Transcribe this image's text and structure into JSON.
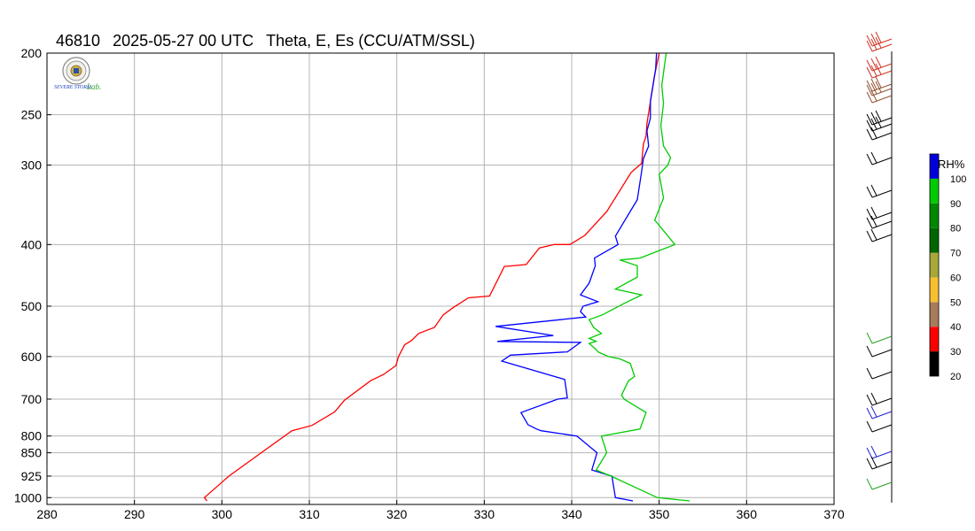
{
  "header": {
    "station": "46810",
    "datetime": "2025-05-27 00 UTC",
    "title": "Theta, E, Es (CCU/ATM/SSL)"
  },
  "logo": {
    "text_left": "SEVERE STORM",
    "text_right": "Lab."
  },
  "colorbar": {
    "label": "RH%",
    "ticks": [
      "20",
      "30",
      "40",
      "50",
      "60",
      "70",
      "80",
      "90",
      "100"
    ],
    "colors": [
      "#000000",
      "#ff0000",
      "#a87b5c",
      "#f8c030",
      "#a8a838",
      "#006600",
      "#008800",
      "#00cc00",
      "#0000dd"
    ]
  },
  "colors": {
    "theta": "#ff0000",
    "theta_e": "#0000ff",
    "theta_es": "#00cc00",
    "grid": "#b4b4b4"
  },
  "chart_data": {
    "type": "line",
    "xlabel": "",
    "ylabel": "",
    "xlim": [
      280,
      370
    ],
    "xticks": [
      280,
      290,
      300,
      310,
      320,
      330,
      340,
      350,
      360,
      370
    ],
    "ylim": [
      1025,
      200
    ],
    "yticks": [
      200,
      250,
      300,
      400,
      500,
      600,
      700,
      800,
      850,
      925,
      1000
    ],
    "grid": true,
    "series": [
      {
        "id": "theta",
        "color": "#ff0000",
        "points": [
          [
            298.3,
            1012
          ],
          [
            298.0,
            1000
          ],
          [
            300.8,
            925
          ],
          [
            304.5,
            850
          ],
          [
            308.0,
            785
          ],
          [
            310.3,
            770
          ],
          [
            312.9,
            733
          ],
          [
            314.0,
            703
          ],
          [
            317.0,
            655
          ],
          [
            318.5,
            640
          ],
          [
            319.9,
            620
          ],
          [
            320.2,
            600
          ],
          [
            320.9,
            575
          ],
          [
            321.7,
            566
          ],
          [
            322.5,
            552
          ],
          [
            324.3,
            540
          ],
          [
            325.3,
            516
          ],
          [
            326.5,
            502
          ],
          [
            328.2,
            485
          ],
          [
            330.6,
            482
          ],
          [
            332.3,
            433
          ],
          [
            334.8,
            430
          ],
          [
            336.3,
            405
          ],
          [
            338.0,
            400
          ],
          [
            339.8,
            400
          ],
          [
            341.5,
            387
          ],
          [
            344.0,
            355
          ],
          [
            346.8,
            308
          ],
          [
            348.0,
            298
          ],
          [
            348.2,
            278
          ],
          [
            348.5,
            270
          ],
          [
            348.6,
            258
          ],
          [
            349.5,
            216
          ],
          [
            350.0,
            200
          ]
        ]
      },
      {
        "id": "theta_e",
        "color": "#0000ff",
        "points": [
          [
            347.0,
            1012
          ],
          [
            345.0,
            1000
          ],
          [
            344.6,
            925
          ],
          [
            342.3,
            905
          ],
          [
            342.9,
            850
          ],
          [
            340.6,
            800
          ],
          [
            336.5,
            785
          ],
          [
            336.0,
            780
          ],
          [
            335.0,
            768
          ],
          [
            334.2,
            735
          ],
          [
            338.4,
            700
          ],
          [
            339.5,
            697
          ],
          [
            339.2,
            652
          ],
          [
            332.0,
            610
          ],
          [
            333.0,
            597
          ],
          [
            339.5,
            590
          ],
          [
            341.0,
            570
          ],
          [
            331.5,
            568
          ],
          [
            337.9,
            556
          ],
          [
            331.3,
            538
          ],
          [
            341.6,
            520
          ],
          [
            341.0,
            510
          ],
          [
            341.3,
            500
          ],
          [
            343.0,
            492
          ],
          [
            341.0,
            480
          ],
          [
            342.0,
            460
          ],
          [
            342.7,
            432
          ],
          [
            342.6,
            420
          ],
          [
            345.3,
            400
          ],
          [
            345.0,
            388
          ],
          [
            347.5,
            340
          ],
          [
            348.0,
            307
          ],
          [
            348.2,
            293
          ],
          [
            348.8,
            280
          ],
          [
            348.6,
            265
          ],
          [
            349.0,
            253
          ],
          [
            349.0,
            238
          ],
          [
            349.6,
            212
          ],
          [
            349.7,
            200
          ]
        ]
      },
      {
        "id": "theta_es",
        "color": "#00cc00",
        "points": [
          [
            353.5,
            1012
          ],
          [
            349.8,
            1000
          ],
          [
            344.5,
            925
          ],
          [
            342.8,
            905
          ],
          [
            344.0,
            850
          ],
          [
            343.4,
            800
          ],
          [
            347.8,
            780
          ],
          [
            348.5,
            735
          ],
          [
            346.0,
            700
          ],
          [
            345.7,
            690
          ],
          [
            346.5,
            655
          ],
          [
            347.2,
            645
          ],
          [
            346.7,
            615
          ],
          [
            345.5,
            605
          ],
          [
            344.2,
            600
          ],
          [
            343.0,
            590
          ],
          [
            342.8,
            585
          ],
          [
            342.0,
            572
          ],
          [
            342.8,
            568
          ],
          [
            342.0,
            562
          ],
          [
            343.4,
            552
          ],
          [
            342.5,
            540
          ],
          [
            342.0,
            525
          ],
          [
            343.5,
            516
          ],
          [
            346.0,
            495
          ],
          [
            348.0,
            480
          ],
          [
            345.0,
            470
          ],
          [
            347.5,
            450
          ],
          [
            347.5,
            432
          ],
          [
            345.5,
            423
          ],
          [
            347.8,
            420
          ],
          [
            351.8,
            400
          ],
          [
            349.5,
            366
          ],
          [
            350.5,
            338
          ],
          [
            350.0,
            310
          ],
          [
            351.0,
            300
          ],
          [
            351.3,
            292
          ],
          [
            350.5,
            280
          ],
          [
            350.2,
            260
          ],
          [
            350.5,
            240
          ],
          [
            350.3,
            225
          ],
          [
            350.8,
            200
          ]
        ]
      }
    ]
  }
}
